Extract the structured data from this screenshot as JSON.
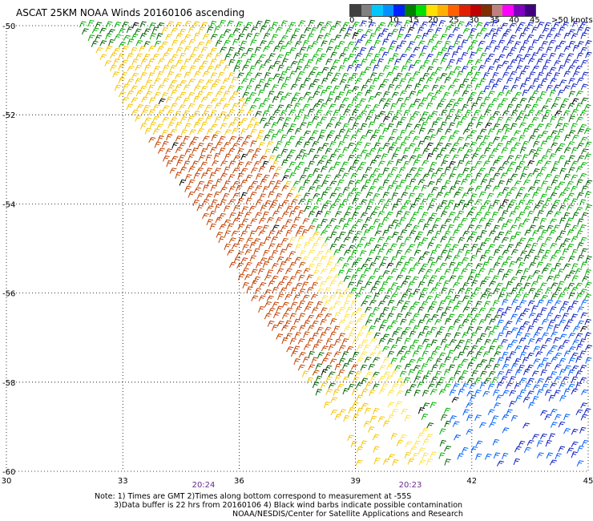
{
  "title": "ASCAT 25KM NOAA Winds 20160106 ascending",
  "colorbar": {
    "unit": ">50 knots",
    "ticks": [
      "0",
      "5",
      "10",
      "15",
      "20",
      "25",
      "30",
      "35",
      "40",
      "45"
    ],
    "colors": [
      "#404040",
      "#808080",
      "#00c8ff",
      "#0090ff",
      "#0020ff",
      "#008000",
      "#00e000",
      "#ffe000",
      "#ffb000",
      "#ff6000",
      "#e02000",
      "#c00000",
      "#803000",
      "#c08080",
      "#ff00ff",
      "#8000c0",
      "#400080"
    ]
  },
  "axes": {
    "x_ticks": [
      "30",
      "33",
      "36",
      "39",
      "42",
      "45"
    ],
    "y_ticks": [
      "-50",
      "-52",
      "-54",
      "-56",
      "-58",
      "-60"
    ],
    "x_range": [
      30,
      45
    ],
    "y_range": [
      -60,
      -50
    ]
  },
  "time_labels": [
    "20:24",
    "20:23"
  ],
  "wind_field": {
    "swath": "ascending pass, NW-SE diagonal edge",
    "speed_classes": {
      "strong": "#c04000",
      "moderate": "#f5c400",
      "light_yellow": "#ffe24a",
      "fresh_green": "#00b000",
      "dark_green": "#006000",
      "light_blue": "#0060ff",
      "dark_blue": "#1020c0",
      "contaminated": "#000000"
    }
  },
  "footer": {
    "line1": "Note: 1) Times are GMT 2)Times along bottom correspond to measurement at -55S",
    "line2": "3)Data buffer is 22 hrs from 20160106 4) Black wind barbs indicate possible contamination",
    "line3": "NOAA/NESDIS/Center for Satellite Applications and Research"
  }
}
